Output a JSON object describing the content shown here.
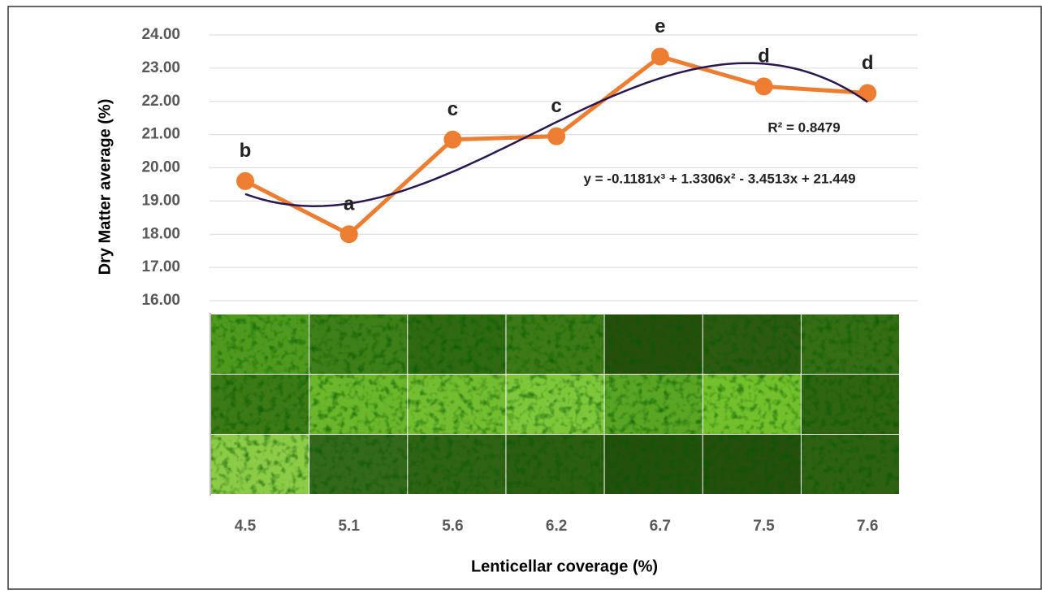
{
  "chart_data": {
    "type": "line",
    "x_label": "Lenticellar coverage (%)",
    "y_label": "Dry Matter average  (%)",
    "categories": [
      "4.5",
      "5.1",
      "5.6",
      "6.2",
      "6.7",
      "7.5",
      "7.6"
    ],
    "values": [
      19.6,
      18.0,
      20.85,
      20.95,
      23.35,
      22.45,
      22.25
    ],
    "group_letters": [
      "b",
      "a",
      "c",
      "c",
      "e",
      "d",
      "d"
    ],
    "color": "#ed7d31",
    "ylim": [
      16,
      24
    ],
    "yticks": [
      {
        "value": 16,
        "label": "16.00"
      },
      {
        "value": 17,
        "label": "17.00"
      },
      {
        "value": 18,
        "label": "18.00"
      },
      {
        "value": 19,
        "label": "19.00"
      },
      {
        "value": 20,
        "label": "20.00"
      },
      {
        "value": 21,
        "label": "21.00"
      },
      {
        "value": 22,
        "label": "22.00"
      },
      {
        "value": 23,
        "label": "23.00"
      },
      {
        "value": 24,
        "label": "24.00"
      }
    ],
    "grid": true,
    "trendline": {
      "equation": "y = -0.1181x³  + 1.3306x²  - 3.4513x  + 21.449",
      "coefficients": [
        -0.1181,
        1.3306,
        -3.4513,
        21.449
      ],
      "r_squared_label": "R² = 0.8479",
      "color": "#2a1650"
    }
  }
}
